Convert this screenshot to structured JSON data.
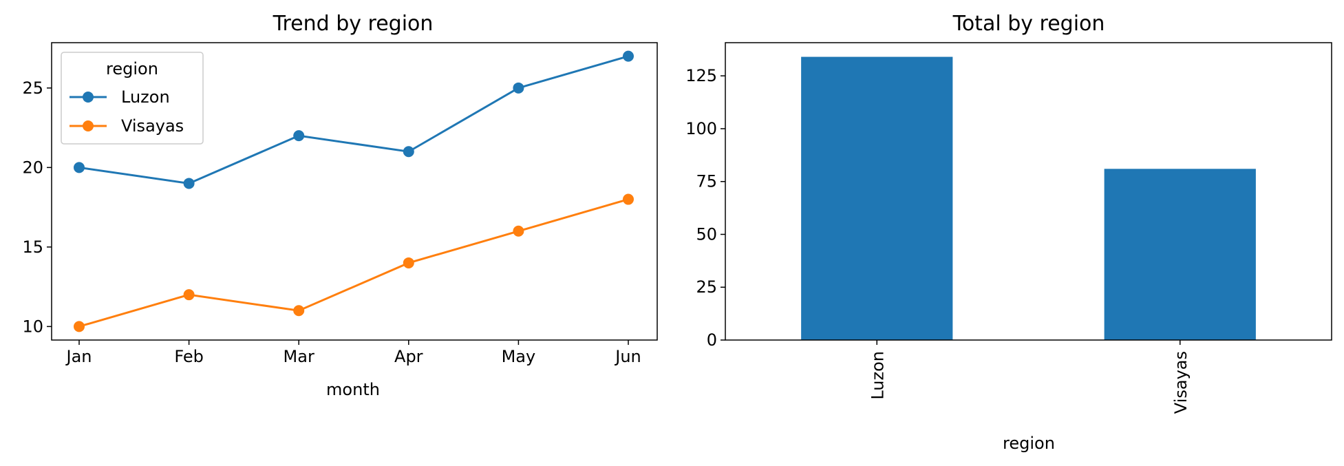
{
  "chart_data": [
    {
      "type": "line",
      "title": "Trend by region",
      "xlabel": "month",
      "ylabel": "",
      "categories": [
        "Jan",
        "Feb",
        "Mar",
        "Apr",
        "May",
        "Jun"
      ],
      "ylim": [
        9.15,
        27.85
      ],
      "yticks": [
        10,
        15,
        20,
        25
      ],
      "legend": {
        "title": "region",
        "placement": "top-left"
      },
      "series": [
        {
          "name": "Luzon",
          "color": "#1f77b4",
          "values": [
            20,
            19,
            22,
            21,
            25,
            27
          ]
        },
        {
          "name": "Visayas",
          "color": "#ff7f0e",
          "values": [
            10,
            12,
            11,
            14,
            16,
            18
          ]
        }
      ],
      "grid": false
    },
    {
      "type": "bar",
      "title": "Total by region",
      "xlabel": "region",
      "ylabel": "",
      "categories": [
        "Luzon",
        "Visayas"
      ],
      "values": [
        134,
        81
      ],
      "ylim": [
        0,
        140.7
      ],
      "yticks": [
        0,
        25,
        50,
        75,
        100,
        125
      ],
      "color": "#1f77b4",
      "tick_rotation": 90,
      "grid": false
    }
  ]
}
